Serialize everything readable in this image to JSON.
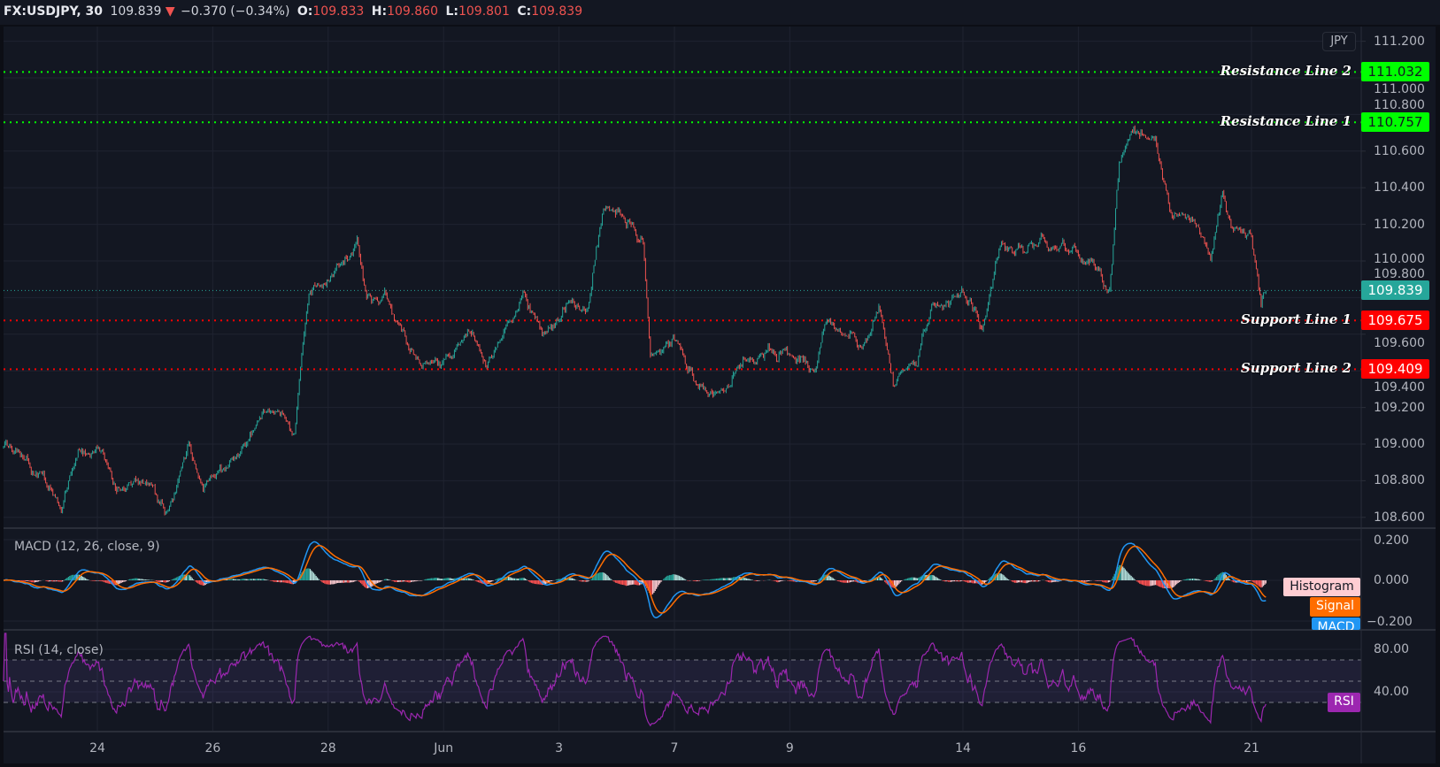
{
  "header": {
    "symbol": "FX:USDJPY, 30",
    "last": "109.839",
    "direction_icon": "triangle-down",
    "change": "−0.370 (−0.34%)",
    "open_label": "O:",
    "open": "109.833",
    "high_label": "H:",
    "high": "109.860",
    "low_label": "L:",
    "low": "109.801",
    "close_label": "C:",
    "close": "109.839"
  },
  "currency_badge": "JPY",
  "price_axis": [
    "111.200",
    "111.000",
    "110.800",
    "110.600",
    "110.400",
    "110.200",
    "110.000",
    "109.800",
    "109.600",
    "109.400",
    "109.200",
    "109.000",
    "108.800",
    "108.600"
  ],
  "levels": [
    {
      "name": "Resistance Line 2",
      "price": "111.032",
      "color": "#00ff00",
      "text_color": "#131722"
    },
    {
      "name": "Resistance Line 1",
      "price": "110.757",
      "color": "#00ff00",
      "text_color": "#131722"
    },
    {
      "name": "Support Line 1",
      "price": "109.675",
      "color": "#ff0000",
      "text_color": "#ffffff"
    },
    {
      "name": "Support Line 2",
      "price": "109.409",
      "color": "#ff0000",
      "text_color": "#ffffff"
    }
  ],
  "current_price": {
    "price": "109.839",
    "color": "#26a69a"
  },
  "macd": {
    "title": "MACD (12, 26, close, 9)",
    "axis": [
      "0.200",
      "0.000",
      "−0.200"
    ],
    "legend": {
      "histogram": "Histogram",
      "signal": "Signal",
      "macd": "MACD"
    },
    "colors": {
      "macd": "#2196f3",
      "signal": "#ff6d00",
      "hist_up": "#26a69a",
      "hist_up_light": "#b2dfdb",
      "hist_down": "#ff5252",
      "hist_down_light": "#ffcdd2"
    }
  },
  "rsi": {
    "title": "RSI (14, close)",
    "axis": [
      "80.00",
      "40.00"
    ],
    "legend": "RSI",
    "band": [
      30,
      70
    ],
    "color": "#9c27b0"
  },
  "time_axis": [
    "24",
    "26",
    "28",
    "Jun",
    "3",
    "7",
    "9",
    "14",
    "16",
    "21"
  ],
  "colors": {
    "background": "#131722",
    "up": "#26a69a",
    "down": "#ef5350",
    "grid": "#1f2330"
  },
  "chart_data": {
    "type": "candlestick",
    "interval": "30",
    "symbol": "FX:USDJPY",
    "yrange": [
      108.55,
      111.25
    ],
    "price_path": [
      [
        "05-20 09:00",
        108.98
      ],
      [
        "05-20 23:00",
        108.85
      ],
      [
        "05-21 09:00",
        108.65
      ],
      [
        "05-21 16:00",
        108.95
      ],
      [
        "05-24 02:00",
        108.95
      ],
      [
        "05-24 08:00",
        108.75
      ],
      [
        "05-24 17:00",
        108.8
      ],
      [
        "05-25 06:00",
        108.65
      ],
      [
        "05-25 14:00",
        109.0
      ],
      [
        "05-25 20:00",
        108.75
      ],
      [
        "05-26 11:00",
        108.95
      ],
      [
        "05-26 23:00",
        109.2
      ],
      [
        "05-27 10:00",
        109.1
      ],
      [
        "05-27 16:00",
        109.8
      ],
      [
        "05-28 01:00",
        109.9
      ],
      [
        "05-28 12:00",
        110.1
      ],
      [
        "05-28 16:00",
        109.8
      ],
      [
        "05-31 00:00",
        109.8
      ],
      [
        "05-31 04:00",
        109.65
      ],
      [
        "05-31 15:00",
        109.45
      ],
      [
        "06-01 01:00",
        109.45
      ],
      [
        "06-01 12:00",
        109.6
      ],
      [
        "06-01 18:00",
        109.4
      ],
      [
        "06-02 09:00",
        109.85
      ],
      [
        "06-02 17:00",
        109.55
      ],
      [
        "06-03 06:00",
        109.8
      ],
      [
        "06-03 12:00",
        109.75
      ],
      [
        "06-03 18:00",
        110.3
      ],
      [
        "06-04 03:00",
        110.25
      ],
      [
        "06-04 11:00",
        110.1
      ],
      [
        "06-04 14:00",
        109.45
      ],
      [
        "06-07 00:00",
        109.6
      ],
      [
        "06-07 11:00",
        109.3
      ],
      [
        "06-07 21:00",
        109.25
      ],
      [
        "06-08 05:00",
        109.45
      ],
      [
        "06-08 20:00",
        109.5
      ],
      [
        "06-09 11:00",
        109.4
      ],
      [
        "06-09 15:00",
        109.65
      ],
      [
        "06-10 06:00",
        109.55
      ],
      [
        "06-10 13:00",
        109.7
      ],
      [
        "06-10 19:00",
        109.35
      ],
      [
        "06-11 05:00",
        109.45
      ],
      [
        "06-11 12:00",
        109.75
      ],
      [
        "06-14 00:00",
        109.8
      ],
      [
        "06-14 08:00",
        109.65
      ],
      [
        "06-14 15:00",
        110.05
      ],
      [
        "06-15 06:00",
        110.1
      ],
      [
        "06-15 22:00",
        110.05
      ],
      [
        "06-16 07:00",
        109.95
      ],
      [
        "06-16 13:00",
        109.85
      ],
      [
        "06-16 17:00",
        110.5
      ],
      [
        "06-16 21:00",
        110.7
      ],
      [
        "06-17 08:00",
        110.7
      ],
      [
        "06-17 14:00",
        110.3
      ],
      [
        "06-17 23:00",
        110.25
      ],
      [
        "06-18 07:00",
        110.0
      ],
      [
        "06-18 12:00",
        110.35
      ],
      [
        "06-18 16:00",
        110.2
      ],
      [
        "06-21 00:00",
        110.15
      ],
      [
        "06-21 04:00",
        109.75
      ],
      [
        "06-21 06:00",
        109.839
      ]
    ]
  }
}
